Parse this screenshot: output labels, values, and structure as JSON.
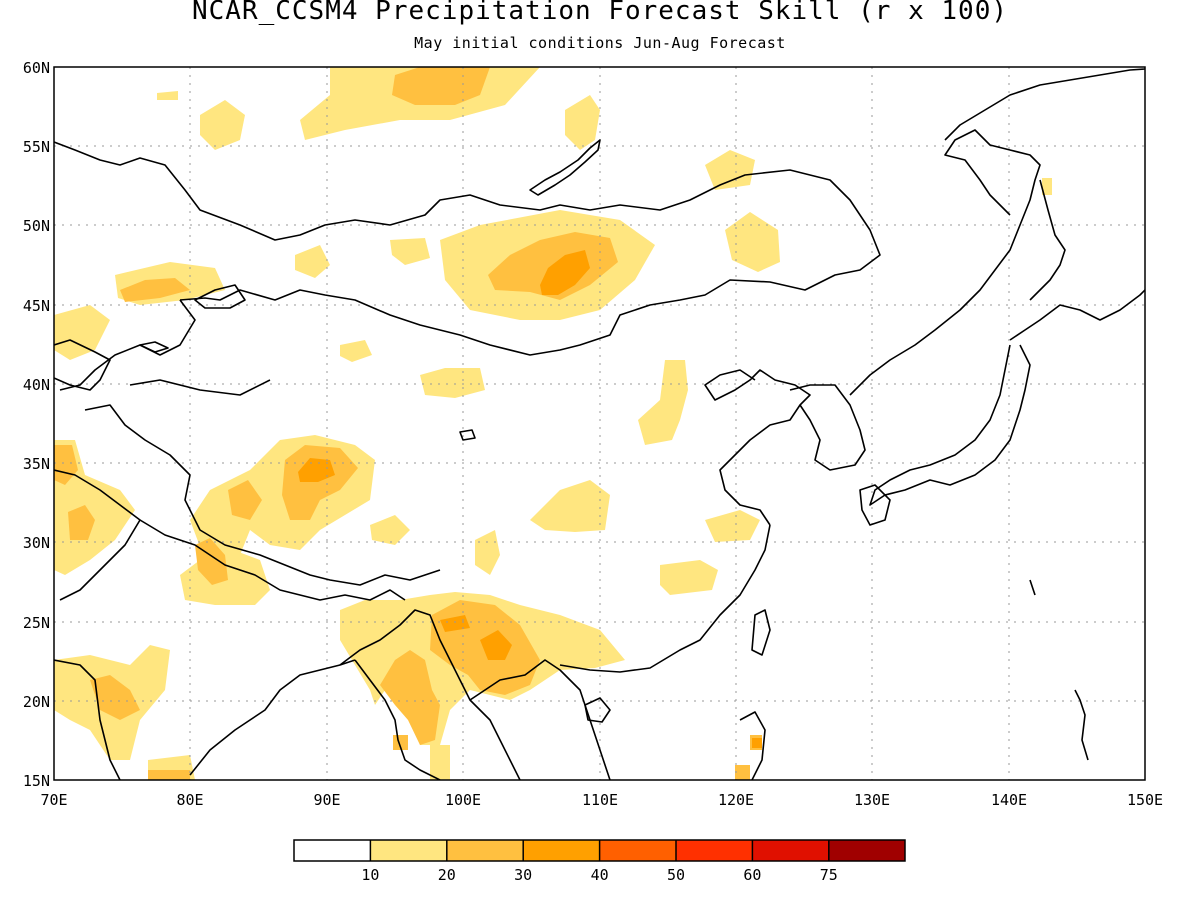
{
  "header": {
    "title": "NCAR_CCSM4 Precipitation Forecast Skill (r x 100)",
    "subtitle": "May initial conditions  Jun-Aug Forecast"
  },
  "map": {
    "lon_range": [
      70,
      150
    ],
    "lat_range": [
      15,
      60
    ],
    "lat_ticks": [
      "15N",
      "20N",
      "25N",
      "30N",
      "35N",
      "40N",
      "45N",
      "50N",
      "55N",
      "60N"
    ],
    "lon_ticks": [
      "70E",
      "80E",
      "90E",
      "100E",
      "110E",
      "120E",
      "130E",
      "140E",
      "150E"
    ],
    "grid": "dotted"
  },
  "colorbar": {
    "labels": [
      "10",
      "20",
      "30",
      "40",
      "50",
      "60",
      "75"
    ],
    "colors": [
      "#ffffff",
      "#ffe680",
      "#ffc040",
      "#ffa000",
      "#ff6000",
      "#ff3000",
      "#e01000",
      "#a00000"
    ]
  }
}
